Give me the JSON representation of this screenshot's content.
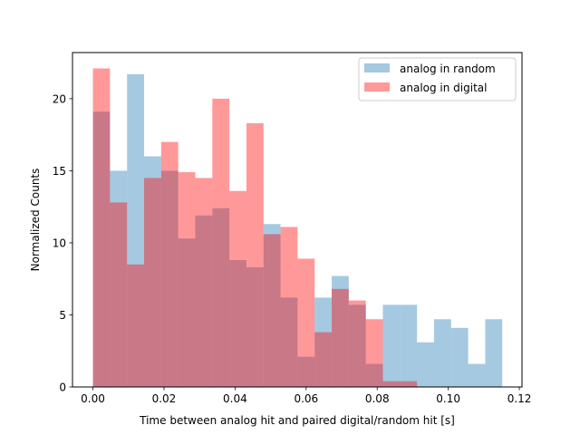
{
  "chart_data": {
    "type": "bar",
    "xlabel": "Time between analog hit and paired digital/random hit [s]",
    "ylabel": "Normalized Counts",
    "xlim": [
      -0.00575,
      0.12075
    ],
    "ylim": [
      0,
      23.2
    ],
    "xticks": [
      0.0,
      0.02,
      0.04,
      0.06,
      0.08,
      0.1,
      0.12
    ],
    "xtick_labels": [
      "0.00",
      "0.02",
      "0.04",
      "0.06",
      "0.08",
      "0.10",
      "0.12"
    ],
    "yticks": [
      0,
      5,
      10,
      15,
      20
    ],
    "ytick_labels": [
      "0",
      "5",
      "10",
      "15",
      "20"
    ],
    "legend_position": "top-right",
    "series": [
      {
        "name": "analog in random",
        "color": "#1f77b4",
        "alpha": 0.4,
        "bin_start": 0.0,
        "bin_width": 0.0048,
        "values": [
          19.1,
          15.0,
          21.7,
          16.0,
          15.0,
          10.3,
          11.9,
          12.4,
          8.8,
          8.3,
          11.3,
          6.2,
          2.1,
          6.2,
          7.7,
          5.7,
          1.6,
          5.7,
          5.7,
          3.1,
          4.7,
          4.1,
          1.6,
          4.7
        ]
      },
      {
        "name": "analog in digital",
        "color": "#ff0000",
        "alpha": 0.4,
        "bin_start": 0.0,
        "bin_width": 0.0048,
        "values": [
          22.1,
          12.8,
          8.5,
          14.5,
          17.0,
          14.9,
          14.5,
          20.0,
          13.6,
          18.3,
          10.6,
          11.1,
          8.9,
          3.8,
          6.8,
          6.0,
          4.7,
          0.4,
          0.4,
          0,
          0,
          0,
          0,
          0
        ]
      }
    ]
  }
}
